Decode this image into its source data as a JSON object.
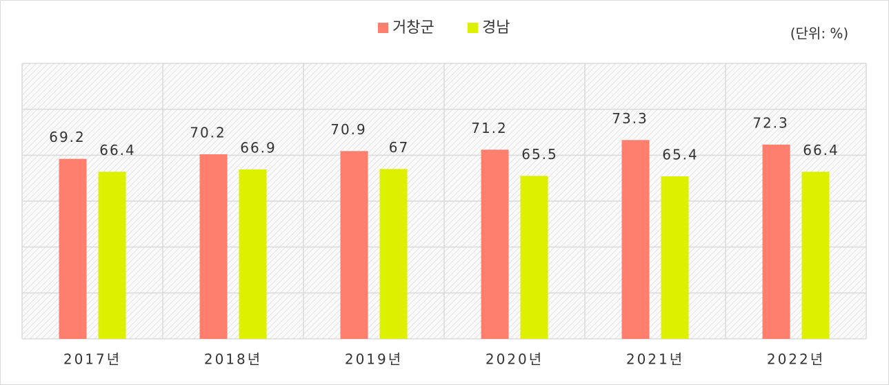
{
  "chart_data": {
    "type": "bar",
    "categories": [
      "2017년",
      "2018년",
      "2019년",
      "2020년",
      "2021년",
      "2022년"
    ],
    "series": [
      {
        "name": "거창군",
        "color": "#ff7f6e",
        "values": [
          69.2,
          70.2,
          70.9,
          71.2,
          73.3,
          72.3
        ]
      },
      {
        "name": "경남",
        "color": "#dcf000",
        "values": [
          66.4,
          66.9,
          67,
          65.5,
          65.4,
          66.4
        ]
      }
    ],
    "unit": "(단위: %)",
    "ylim": [
      30,
      90
    ],
    "yticks": [
      30,
      40,
      50,
      60,
      70,
      80,
      90
    ],
    "grid": true,
    "legend": "top"
  }
}
